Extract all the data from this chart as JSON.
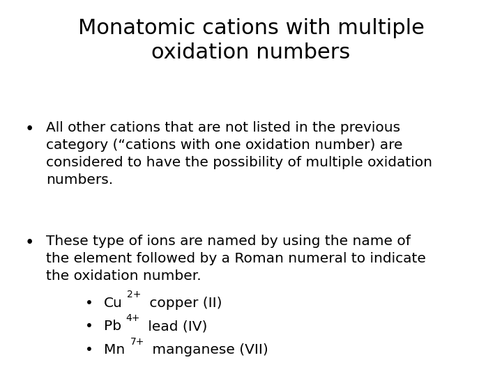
{
  "title_line1": "Monatomic cations with multiple",
  "title_line2": "oxidation numbers",
  "background_color": "#ffffff",
  "text_color": "#000000",
  "title_fontsize": 22,
  "body_fontsize": 14.5,
  "sub_fontsize": 14.5,
  "sup_fontsize": 10,
  "bullet1": "All other cations that are not listed in the previous\ncategory (“cations with one oxidation number) are\nconsidered to have the possibility of multiple oxidation\nnumbers.",
  "bullet2": "These type of ions are named by using the name of\nthe element followed by a Roman numeral to indicate\nthe oxidation number.",
  "sub_bullet1_pre": "Cu",
  "sub_bullet1_sup": "2+",
  "sub_bullet1_post": " copper (II)",
  "sub_bullet2_pre": "Pb",
  "sub_bullet2_sup": "4+",
  "sub_bullet2_post": " lead (IV)",
  "sub_bullet3_pre": "Mn",
  "sub_bullet3_sup": "7+",
  "sub_bullet3_post": " manganese (VII)"
}
